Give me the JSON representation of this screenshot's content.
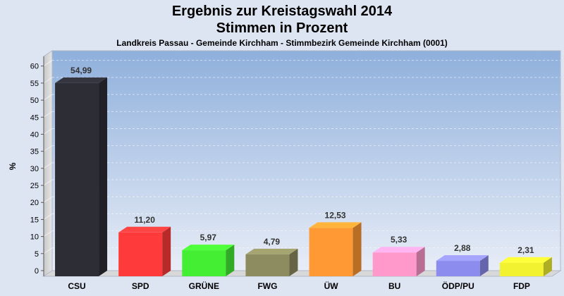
{
  "chart_data": {
    "type": "bar",
    "title": "Ergebnis zur Kreistagswahl 2014",
    "title2": "Stimmen in Prozent",
    "subtitle": "Landkreis Passau - Gemeinde Kirchham - Stimmbezirk Gemeinde Kirchham (0001)",
    "xlabel": "",
    "ylabel": "%",
    "ylim": [
      0,
      62
    ],
    "yticks": [
      0,
      5,
      10,
      15,
      20,
      25,
      30,
      35,
      40,
      45,
      50,
      55,
      60
    ],
    "grid": true,
    "categories": [
      "CSU",
      "SPD",
      "GRÜNE",
      "FWG",
      "ÜW",
      "BU",
      "ÖDP/PU",
      "FDP"
    ],
    "values": [
      54.99,
      11.2,
      5.97,
      4.79,
      12.53,
      5.33,
      2.88,
      2.31
    ],
    "value_labels": [
      "54,99",
      "11,20",
      "5,97",
      "4,79",
      "12,53",
      "5,33",
      "2,88",
      "2,31"
    ],
    "colors": [
      "#2d2d35",
      "#ff3a3a",
      "#44ee33",
      "#8c8c60",
      "#ff9933",
      "#ff99cc",
      "#8c8cee",
      "#f2f230"
    ]
  }
}
